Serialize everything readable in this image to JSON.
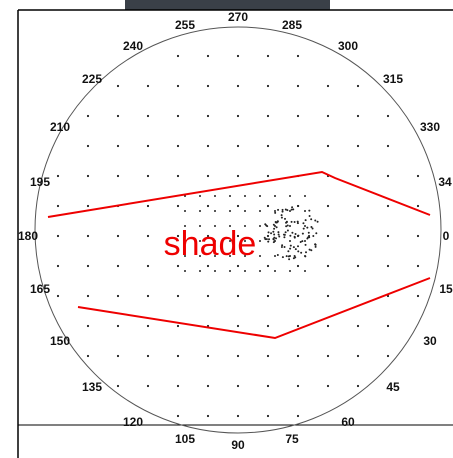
{
  "labels": [
    "270",
    "255",
    "285",
    "240",
    "300",
    "225",
    "315",
    "210",
    "330",
    "195",
    "34",
    "180",
    "0",
    "165",
    "15",
    "150",
    "30",
    "135",
    "45",
    "120",
    "60",
    "105",
    "75",
    "90"
  ],
  "annotation": "shade"
}
